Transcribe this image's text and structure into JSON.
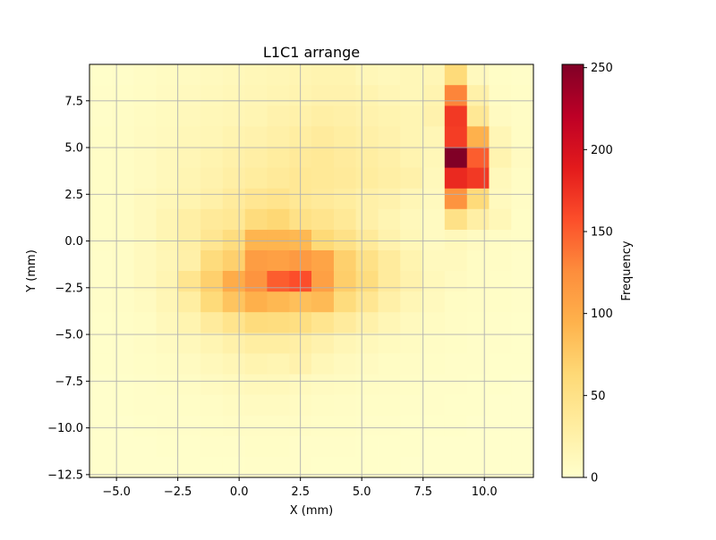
{
  "chart_data": {
    "type": "heatmap",
    "title": "L1C1 arrange",
    "xlabel": "X (mm)",
    "ylabel": "Y (mm)",
    "colorbar_label": "Frequency",
    "colormap": "YlOrRd",
    "grid": true,
    "xlim": [
      -6.1,
      12.0
    ],
    "ylim": [
      -12.65,
      9.45
    ],
    "x_ticks": [
      -5.0,
      -2.5,
      0.0,
      2.5,
      5.0,
      7.5,
      10.0
    ],
    "x_tick_labels": [
      "−5.0",
      "−2.5",
      "0.0",
      "2.5",
      "5.0",
      "7.5",
      "10.0"
    ],
    "y_ticks": [
      -12.5,
      -10.0,
      -7.5,
      -5.0,
      -2.5,
      0.0,
      2.5,
      5.0,
      7.5
    ],
    "y_tick_labels": [
      "−12.5",
      "−10.0",
      "−7.5",
      "−5.0",
      "−2.5",
      "0.0",
      "2.5",
      "5.0",
      "7.5"
    ],
    "colorbar_ticks": [
      0,
      50,
      100,
      150,
      200,
      250
    ],
    "colorbar_tick_labels": [
      "0",
      "50",
      "100",
      "150",
      "200",
      "250"
    ],
    "colorbar_range": [
      0,
      252
    ],
    "x_edges": [
      -6.1,
      -5.19,
      -4.29,
      -3.38,
      -2.48,
      -1.57,
      -0.67,
      0.24,
      1.14,
      2.05,
      2.95,
      3.86,
      4.76,
      5.67,
      6.57,
      7.48,
      8.38,
      9.29,
      10.19,
      11.1,
      12.0
    ],
    "y_edges": [
      -12.65,
      -11.55,
      -10.44,
      -9.34,
      -8.23,
      -7.13,
      -6.02,
      -4.92,
      -3.81,
      -2.71,
      -1.6,
      -0.5,
      0.6,
      1.71,
      2.81,
      3.92,
      5.02,
      6.13,
      7.23,
      8.34,
      9.45
    ],
    "values": [
      [
        2,
        3,
        5,
        7,
        8,
        10,
        12,
        14,
        16,
        18,
        20,
        20,
        14,
        12,
        14,
        16,
        60,
        10,
        4,
        3
      ],
      [
        3,
        4,
        6,
        8,
        10,
        12,
        14,
        16,
        18,
        20,
        22,
        22,
        20,
        16,
        14,
        20,
        130,
        25,
        6,
        4
      ],
      [
        3,
        5,
        7,
        9,
        12,
        14,
        16,
        18,
        22,
        24,
        28,
        26,
        22,
        20,
        18,
        22,
        170,
        40,
        8,
        5
      ],
      [
        4,
        6,
        8,
        10,
        14,
        16,
        20,
        22,
        26,
        30,
        34,
        30,
        26,
        22,
        18,
        16,
        168,
        95,
        16,
        6
      ],
      [
        4,
        6,
        8,
        12,
        16,
        20,
        24,
        28,
        32,
        36,
        38,
        34,
        30,
        26,
        20,
        14,
        252,
        150,
        20,
        8
      ],
      [
        4,
        6,
        8,
        12,
        18,
        22,
        28,
        32,
        36,
        40,
        38,
        36,
        32,
        28,
        24,
        12,
        180,
        170,
        12,
        6
      ],
      [
        4,
        6,
        10,
        14,
        20,
        26,
        34,
        42,
        46,
        40,
        36,
        32,
        26,
        22,
        16,
        10,
        120,
        60,
        10,
        5
      ],
      [
        4,
        6,
        10,
        18,
        28,
        36,
        40,
        58,
        64,
        50,
        46,
        38,
        26,
        18,
        12,
        8,
        50,
        28,
        14,
        4
      ],
      [
        4,
        6,
        10,
        18,
        28,
        42,
        56,
        92,
        92,
        90,
        62,
        50,
        36,
        22,
        14,
        8,
        12,
        8,
        6,
        4
      ],
      [
        3,
        5,
        10,
        16,
        26,
        58,
        70,
        112,
        110,
        115,
        106,
        70,
        50,
        34,
        20,
        10,
        10,
        6,
        5,
        3
      ],
      [
        3,
        5,
        10,
        18,
        44,
        70,
        100,
        120,
        150,
        158,
        110,
        72,
        56,
        34,
        22,
        12,
        8,
        6,
        4,
        3
      ],
      [
        3,
        5,
        8,
        16,
        30,
        60,
        80,
        96,
        90,
        84,
        88,
        58,
        42,
        26,
        16,
        10,
        6,
        5,
        4,
        3
      ],
      [
        2,
        4,
        6,
        12,
        20,
        34,
        46,
        58,
        56,
        54,
        44,
        34,
        24,
        16,
        10,
        7,
        5,
        4,
        3,
        2
      ],
      [
        2,
        3,
        5,
        8,
        12,
        18,
        24,
        30,
        30,
        28,
        22,
        16,
        12,
        9,
        7,
        5,
        4,
        3,
        3,
        2
      ],
      [
        2,
        3,
        4,
        6,
        8,
        12,
        16,
        20,
        18,
        22,
        14,
        10,
        8,
        6,
        5,
        4,
        3,
        3,
        2,
        2
      ],
      [
        1,
        2,
        3,
        4,
        6,
        8,
        10,
        12,
        12,
        10,
        8,
        7,
        6,
        5,
        4,
        3,
        3,
        2,
        2,
        1
      ],
      [
        1,
        2,
        3,
        3,
        4,
        5,
        7,
        8,
        8,
        7,
        6,
        5,
        4,
        4,
        3,
        3,
        2,
        2,
        1,
        1
      ],
      [
        1,
        1,
        2,
        3,
        3,
        4,
        5,
        5,
        5,
        5,
        4,
        4,
        3,
        3,
        2,
        2,
        2,
        1,
        1,
        1
      ],
      [
        1,
        1,
        1,
        2,
        2,
        3,
        3,
        4,
        4,
        3,
        3,
        3,
        2,
        2,
        2,
        1,
        1,
        1,
        1,
        1
      ],
      [
        1,
        1,
        1,
        1,
        2,
        2,
        2,
        3,
        3,
        3,
        2,
        2,
        2,
        2,
        1,
        1,
        1,
        1,
        1,
        1
      ]
    ]
  }
}
